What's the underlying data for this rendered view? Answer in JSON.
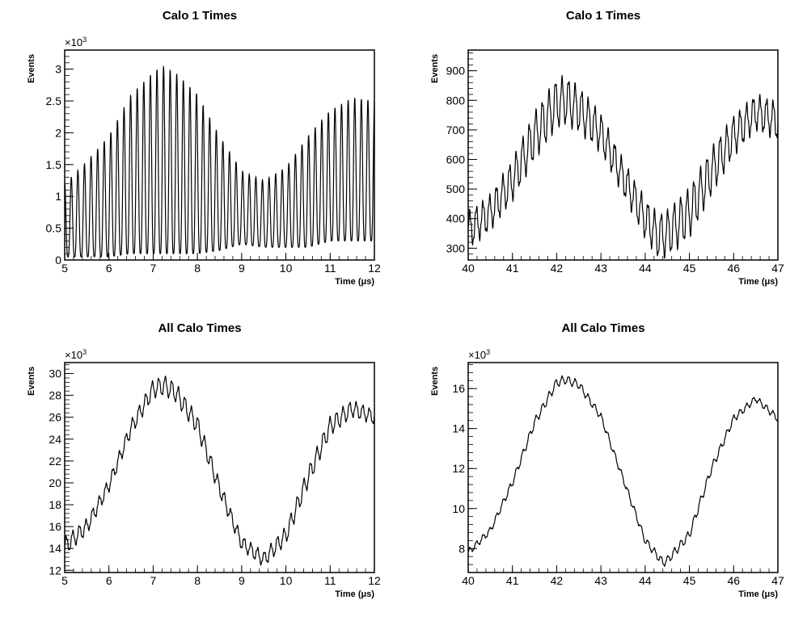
{
  "chart_data": [
    {
      "type": "line",
      "title": "Calo 1 Times",
      "xlabel": "Time (μs)",
      "ylabel": "Events",
      "xlim": [
        5,
        12
      ],
      "ylim": [
        0,
        3.3
      ],
      "y_multiplier": "×10",
      "y_multiplier_exp": "3",
      "x_ticks": [
        "5",
        "6",
        "7",
        "8",
        "9",
        "10",
        "11",
        "12"
      ],
      "y_ticks": [
        "0",
        "0.5",
        "1",
        "1.5",
        "2",
        "2.5",
        "3"
      ],
      "grid": false,
      "legend": "none",
      "color": "#000000",
      "series": [
        {
          "x": [
            5.0,
            5.5,
            6.0,
            6.5,
            7.0,
            7.2,
            7.5,
            8.0,
            8.5,
            9.0,
            9.5,
            10.0,
            10.5,
            11.0,
            11.5,
            12.0
          ],
          "values": [
            1.2,
            1.55,
            1.95,
            2.6,
            2.95,
            3.05,
            2.95,
            2.6,
            1.95,
            1.4,
            1.25,
            1.45,
            1.95,
            2.35,
            2.55,
            2.5
          ],
          "min_values": [
            0.05,
            0.05,
            0.05,
            0.1,
            0.1,
            0.1,
            0.1,
            0.1,
            0.15,
            0.25,
            0.2,
            0.2,
            0.2,
            0.3,
            0.3,
            0.3
          ],
          "oscillation_period": 0.149
        }
      ]
    },
    {
      "type": "line",
      "title": "Calo 1 Times",
      "xlabel": "Time (μs)",
      "ylabel": "Events",
      "xlim": [
        40,
        47
      ],
      "ylim": [
        260,
        970
      ],
      "x_ticks": [
        "40",
        "41",
        "42",
        "43",
        "44",
        "45",
        "46",
        "47"
      ],
      "y_ticks": [
        "300",
        "400",
        "500",
        "600",
        "700",
        "800",
        "900"
      ],
      "grid": false,
      "legend": "none",
      "color": "#000000",
      "series": [
        {
          "x": [
            40.0,
            40.5,
            41.0,
            41.5,
            42.0,
            42.2,
            42.5,
            43.0,
            43.5,
            44.0,
            44.3,
            44.5,
            45.0,
            45.5,
            46.0,
            46.5,
            47.0
          ],
          "values": [
            360,
            420,
            530,
            680,
            790,
            800,
            770,
            690,
            540,
            400,
            340,
            350,
            420,
            560,
            680,
            760,
            730
          ],
          "oscillation_amplitude": 65,
          "oscillation_period": 0.149
        }
      ]
    },
    {
      "type": "line",
      "title": "All Calo Times",
      "xlabel": "Time (μs)",
      "ylabel": "Events",
      "xlim": [
        5,
        12
      ],
      "ylim": [
        11.8,
        31.0
      ],
      "y_multiplier": "×10",
      "y_multiplier_exp": "3",
      "x_ticks": [
        "5",
        "6",
        "7",
        "8",
        "9",
        "10",
        "11",
        "12"
      ],
      "y_ticks": [
        "12",
        "14",
        "16",
        "18",
        "20",
        "22",
        "24",
        "26",
        "28",
        "30"
      ],
      "grid": false,
      "legend": "none",
      "color": "#000000",
      "series": [
        {
          "x": [
            5.0,
            5.5,
            6.0,
            6.5,
            7.0,
            7.25,
            7.5,
            8.0,
            8.5,
            9.0,
            9.5,
            10.0,
            10.5,
            11.0,
            11.5,
            12.0
          ],
          "values": [
            14.2,
            16.0,
            19.8,
            25.0,
            28.6,
            28.9,
            28.3,
            25.3,
            19.5,
            14.5,
            13.0,
            15.2,
            20.5,
            25.2,
            26.8,
            26.0
          ],
          "oscillation_amplitude": 0.7,
          "oscillation_period": 0.149
        }
      ]
    },
    {
      "type": "line",
      "title": "All Calo Times",
      "xlabel": "Time (μs)",
      "ylabel": "Events",
      "xlim": [
        40,
        47
      ],
      "ylim": [
        6.8,
        17.3
      ],
      "y_multiplier": "×10",
      "y_multiplier_exp": "3",
      "x_ticks": [
        "40",
        "41",
        "42",
        "43",
        "44",
        "45",
        "46",
        "47"
      ],
      "y_ticks": [
        "8",
        "10",
        "12",
        "14",
        "16"
      ],
      "grid": false,
      "legend": "none",
      "color": "#000000",
      "series": [
        {
          "x": [
            40.0,
            40.5,
            41.0,
            41.5,
            42.0,
            42.2,
            42.5,
            43.0,
            43.5,
            44.0,
            44.4,
            44.5,
            45.0,
            45.5,
            46.0,
            46.5,
            47.0
          ],
          "values": [
            7.8,
            8.9,
            11.3,
            14.3,
            16.3,
            16.45,
            16.2,
            14.6,
            11.5,
            8.4,
            7.3,
            7.4,
            8.7,
            12.0,
            14.5,
            15.5,
            14.5
          ],
          "oscillation_amplitude": 0.18,
          "oscillation_period": 0.149
        }
      ]
    }
  ]
}
